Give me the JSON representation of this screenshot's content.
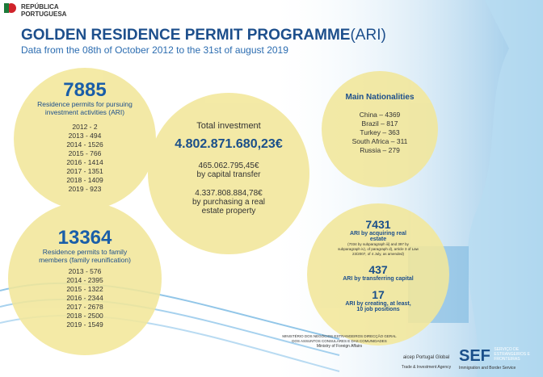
{
  "header": {
    "logo_text": "REPÚBLICA PORTUGUESA",
    "title": "GOLDEN RESIDENCE PERMIT PROGRAMME",
    "title_suffix": "(ARI)",
    "subtitle": "Data from the 08th of October 2012 to the 31st of august 2019"
  },
  "permits": {
    "total": "7885",
    "label": "Residence permits for pursuing investment activities (ARI)",
    "years": [
      "2012 - 2",
      "2013 - 494",
      "2014 - 1526",
      "2015 - 766",
      "2016 - 1414",
      "2017 - 1351",
      "2018 - 1409",
      "2019 - 923"
    ]
  },
  "investment": {
    "label": "Total investment",
    "total": "4.802.871.680,23€",
    "capital_transfer": "465.062.795,45€",
    "capital_transfer_label": "by capital transfer",
    "real_estate": "4.337.808.884,78€",
    "real_estate_label": "by purchasing a real estate property"
  },
  "nationalities": {
    "title": "Main Nationalities",
    "items": [
      "China – 4369",
      "Brazil – 817",
      "Turkey – 363",
      "South Africa – 311",
      "Russia – 279"
    ]
  },
  "family": {
    "total": "13364",
    "label": "Residence permits to family members (family reunification)",
    "years": [
      "2013 - 576",
      "2014 - 2395",
      "2015 - 1322",
      "2016 - 2344",
      "2017 - 2678",
      "2018 - 2500",
      "2019 - 1549"
    ]
  },
  "breakdown": [
    {
      "value": "7431",
      "label": "ARI by acquiring real estate",
      "note": "(7034 by subparagraph iii) and 397 by subparagraph iv), of paragraph d), article 3 of Law 23/2007, of 4 July, as amended)"
    },
    {
      "value": "437",
      "label": "ARI by transferring capital"
    },
    {
      "value": "17",
      "label": "ARI by creating, at least, 10 job positions"
    }
  ],
  "footer": {
    "mne": "MINISTÉRIO DOS NEGÓCIOS ESTRANGEIROS DIRECÇÃO GERAL DOS ASSUNTOS CONSULARES E DAS COMUNIDADES",
    "mne_en": "Ministry of Foreign Affairs",
    "aicep": "aicep Portugal Global",
    "aicep_en": "Trade & Investment Agency",
    "sef": "SEF",
    "sef_name": "SERVIÇO DE ESTRANGEIROS E FRONTEIRAS",
    "sef_en": "Immigration and Border Service"
  }
}
